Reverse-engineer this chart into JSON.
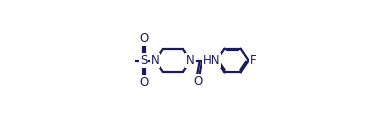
{
  "bg_color": "#ffffff",
  "line_color": "#1a1a5e",
  "line_width": 1.6,
  "font_size": 8.5,
  "figsize": [
    3.9,
    1.21
  ],
  "dpi": 100,
  "xlim": [
    0,
    1.0
  ],
  "ylim": [
    0,
    1.0
  ],
  "ring_color": "#1a1a5e"
}
